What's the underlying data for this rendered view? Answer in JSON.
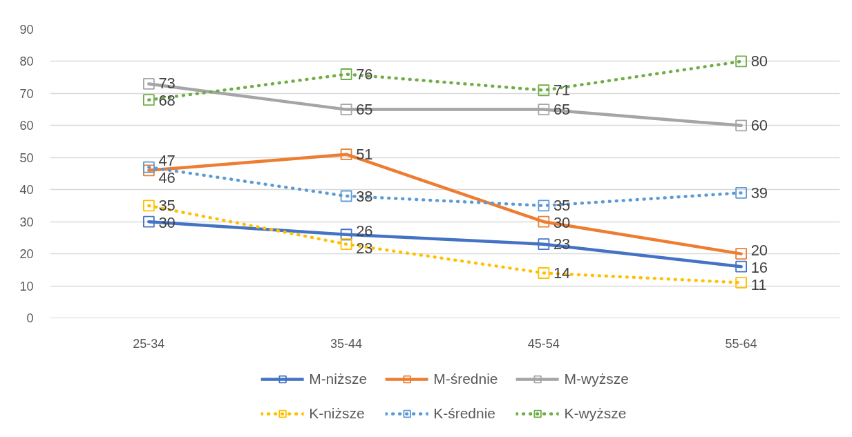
{
  "chart_data": {
    "type": "line",
    "categories": [
      "25-34",
      "35-44",
      "45-54",
      "55-64"
    ],
    "series": [
      {
        "name": "M-niższe",
        "color": "#4472c4",
        "line_style": "solid",
        "values": [
          30,
          26,
          23,
          16
        ]
      },
      {
        "name": "M-średnie",
        "color": "#ed7d31",
        "line_style": "solid",
        "values": [
          46,
          51,
          30,
          20
        ]
      },
      {
        "name": "M-wyższe",
        "color": "#a5a5a5",
        "line_style": "solid",
        "values": [
          73,
          65,
          65,
          60
        ]
      },
      {
        "name": "K-niższe",
        "color": "#ffc000",
        "line_style": "dotted",
        "values": [
          35,
          23,
          14,
          11
        ]
      },
      {
        "name": "K-średnie",
        "color": "#5b9bd5",
        "line_style": "dotted",
        "values": [
          47,
          38,
          35,
          39
        ]
      },
      {
        "name": "K-wyższe",
        "color": "#70ad47",
        "line_style": "dotted",
        "values": [
          68,
          76,
          71,
          80
        ]
      }
    ],
    "ylim": [
      0,
      90
    ],
    "yticks": [
      0,
      10,
      20,
      30,
      40,
      50,
      60,
      70,
      80,
      90
    ],
    "grid": "y",
    "legend": "bottom",
    "marker": "square",
    "data_labels": true
  }
}
